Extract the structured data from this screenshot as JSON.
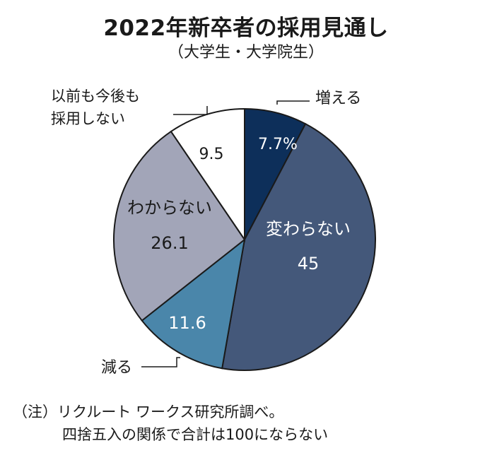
{
  "chart_data": {
    "type": "pie",
    "title": "2022年新卒者の採用見通し",
    "subtitle": "（大学生・大学院生）",
    "slices": [
      {
        "label": "増える",
        "value": 7.7,
        "value_label": "7.7%",
        "color": "#0d2f5a",
        "label_position": "outside",
        "text_color": "#ffffff"
      },
      {
        "label": "変わらない",
        "value": 45,
        "value_label": "45",
        "color": "#44587a",
        "label_position": "inside",
        "text_color": "#ffffff"
      },
      {
        "label": "減る",
        "value": 11.6,
        "value_label": "11.6",
        "color": "#4a86aa",
        "label_position": "outside",
        "text_color": "#ffffff"
      },
      {
        "label": "わからない",
        "value": 26.1,
        "value_label": "26.1",
        "color": "#a2a5b8",
        "label_position": "inside",
        "text_color": "#1a1a1a"
      },
      {
        "label": "以前も今後も\n採用しない",
        "value": 9.5,
        "value_label": "9.5",
        "color": "#ffffff",
        "label_position": "outside",
        "text_color": "#1a1a1a"
      }
    ],
    "start_angle": "12 o'clock",
    "direction": "clockwise"
  },
  "notes": [
    "（注）リクルート ワークス研究所調べ。",
    "四捨五入の関係で合計は100にならない"
  ]
}
